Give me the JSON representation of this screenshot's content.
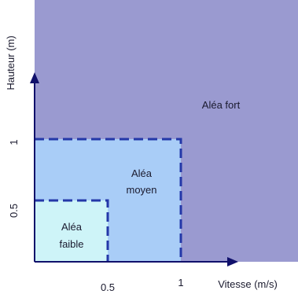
{
  "axes": {
    "x_label": "Vitesse (m/s)",
    "y_label": "Hauteur (m)",
    "x_ticks": [
      {
        "value": 0.5,
        "label": "0.5"
      },
      {
        "value": 1,
        "label": "1"
      }
    ],
    "y_ticks": [
      {
        "value": 0.5,
        "label": "0.5"
      },
      {
        "value": 1,
        "label": "1"
      }
    ]
  },
  "zones": {
    "fort": {
      "label": "Aléa fort",
      "color": "#9a9ad0"
    },
    "moyen": {
      "label_line1": "Aléa",
      "label_line2": "moyen",
      "color": "#a9cdf7",
      "x_max": 1,
      "y_max": 1
    },
    "faible": {
      "label_line1": "Aléa",
      "label_line2": "faible",
      "color": "#cef4f8",
      "x_max": 0.5,
      "y_max": 0.5
    }
  },
  "colors": {
    "axis": "#10106b",
    "dash": "#2438a8"
  }
}
